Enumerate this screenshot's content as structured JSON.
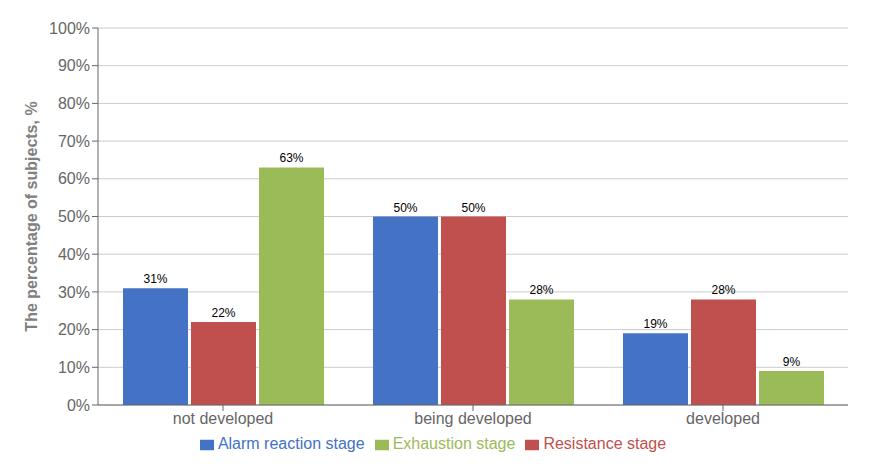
{
  "chart_data": {
    "type": "bar",
    "ylabel": "The percentage of subjects, %",
    "categories": [
      "not developed",
      "being developed",
      "developed"
    ],
    "series": [
      {
        "name": "Alarm reaction stage",
        "color": "#4472C4",
        "values": [
          31,
          50,
          19
        ],
        "value_labels": [
          "31%",
          "50%",
          "19%"
        ]
      },
      {
        "name": "Resistance stage",
        "color": "#C0504D",
        "values": [
          22,
          50,
          28
        ],
        "value_labels": [
          "22%",
          "50%",
          "28%"
        ]
      },
      {
        "name": "Exhaustion stage",
        "color": "#9BBB59",
        "values": [
          63,
          28,
          9
        ],
        "value_labels": [
          "63%",
          "28%",
          "9%"
        ]
      }
    ],
    "ylim": [
      0,
      100
    ],
    "yticks": [
      {
        "value": 0,
        "label": "0%"
      },
      {
        "value": 10,
        "label": "10%"
      },
      {
        "value": 20,
        "label": "20%"
      },
      {
        "value": 30,
        "label": "30%"
      },
      {
        "value": 40,
        "label": "40%"
      },
      {
        "value": 50,
        "label": "50%"
      },
      {
        "value": 60,
        "label": "60%"
      },
      {
        "value": 70,
        "label": "70%"
      },
      {
        "value": 80,
        "label": "80%"
      },
      {
        "value": 90,
        "label": "90%"
      },
      {
        "value": 100,
        "label": "100%"
      }
    ],
    "grid": true,
    "legend": "bottom",
    "data_labels": true
  }
}
